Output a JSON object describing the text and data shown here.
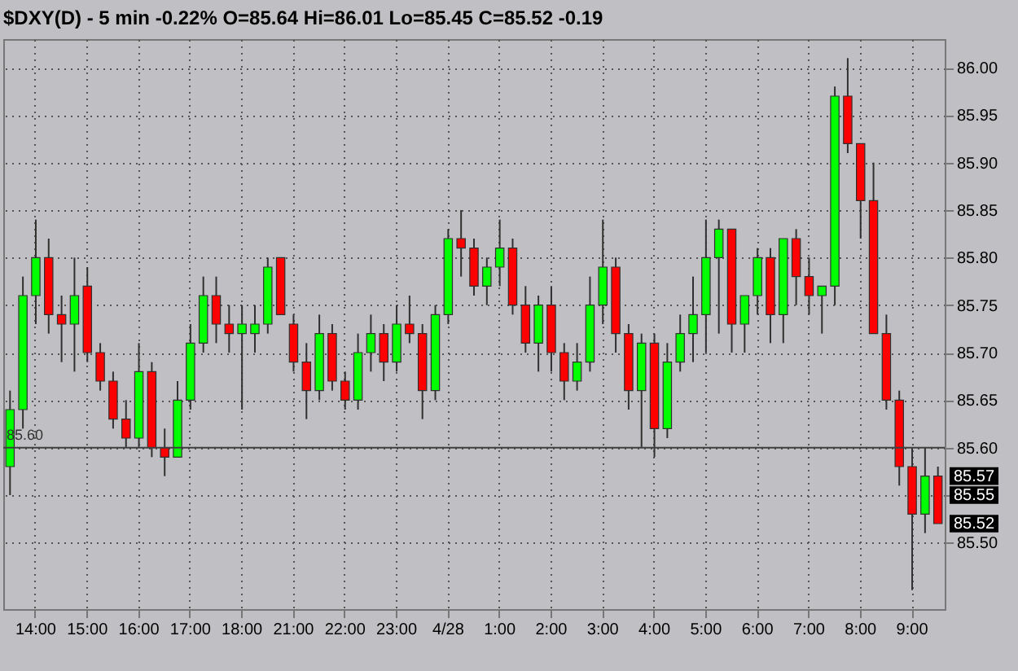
{
  "chart_data": {
    "type": "candlestick",
    "title": "$DXY(D) - 5 min   -0.22%   O=85.64   Hi=86.01   Lo=85.45   C=85.52   -0.19",
    "categories": [
      null,
      null,
      "14:00",
      null,
      null,
      null,
      "15:00",
      null,
      null,
      null,
      "16:00",
      null,
      null,
      null,
      "17:00",
      null,
      null,
      null,
      "18:00",
      null,
      null,
      null,
      "21:00",
      null,
      null,
      null,
      "22:00",
      null,
      null,
      null,
      "23:00",
      null,
      null,
      null,
      "4/28",
      null,
      null,
      null,
      "1:00",
      null,
      null,
      null,
      "2:00",
      null,
      null,
      null,
      "3:00",
      null,
      null,
      null,
      "4:00",
      null,
      null,
      null,
      "5:00",
      null,
      null,
      null,
      "6:00",
      null,
      null,
      null,
      "7:00",
      null,
      null,
      null,
      "8:00",
      null,
      null,
      null,
      "9:00",
      null,
      null
    ],
    "ohlc": [
      [
        85.58,
        85.66,
        85.55,
        85.64
      ],
      [
        85.64,
        85.78,
        85.62,
        85.76
      ],
      [
        85.76,
        85.84,
        85.73,
        85.8
      ],
      [
        85.8,
        85.82,
        85.72,
        85.74
      ],
      [
        85.74,
        85.76,
        85.69,
        85.73
      ],
      [
        85.73,
        85.8,
        85.68,
        85.76
      ],
      [
        85.77,
        85.79,
        85.69,
        85.7
      ],
      [
        85.7,
        85.71,
        85.66,
        85.67
      ],
      [
        85.67,
        85.68,
        85.62,
        85.63
      ],
      [
        85.63,
        85.65,
        85.6,
        85.61
      ],
      [
        85.61,
        85.71,
        85.6,
        85.68
      ],
      [
        85.68,
        85.69,
        85.59,
        85.6
      ],
      [
        85.6,
        85.62,
        85.57,
        85.59
      ],
      [
        85.59,
        85.67,
        85.59,
        85.65
      ],
      [
        85.65,
        85.73,
        85.64,
        85.71
      ],
      [
        85.71,
        85.78,
        85.7,
        85.76
      ],
      [
        85.76,
        85.78,
        85.71,
        85.73
      ],
      [
        85.73,
        85.75,
        85.7,
        85.72
      ],
      [
        85.72,
        85.75,
        85.64,
        85.73
      ],
      [
        85.72,
        85.75,
        85.7,
        85.73
      ],
      [
        85.73,
        85.8,
        85.72,
        85.79
      ],
      [
        85.8,
        85.8,
        85.74,
        85.74
      ],
      [
        85.73,
        85.74,
        85.68,
        85.69
      ],
      [
        85.69,
        85.71,
        85.63,
        85.66
      ],
      [
        85.66,
        85.74,
        85.65,
        85.72
      ],
      [
        85.72,
        85.73,
        85.66,
        85.67
      ],
      [
        85.67,
        85.68,
        85.64,
        85.65
      ],
      [
        85.65,
        85.72,
        85.64,
        85.7
      ],
      [
        85.7,
        85.74,
        85.68,
        85.72
      ],
      [
        85.72,
        85.73,
        85.67,
        85.69
      ],
      [
        85.69,
        85.75,
        85.68,
        85.73
      ],
      [
        85.73,
        85.76,
        85.71,
        85.72
      ],
      [
        85.72,
        85.73,
        85.63,
        85.66
      ],
      [
        85.66,
        85.75,
        85.65,
        85.74
      ],
      [
        85.74,
        85.83,
        85.73,
        85.82
      ],
      [
        85.82,
        85.85,
        85.78,
        85.81
      ],
      [
        85.81,
        85.82,
        85.76,
        85.77
      ],
      [
        85.77,
        85.8,
        85.75,
        85.79
      ],
      [
        85.79,
        85.84,
        85.77,
        85.81
      ],
      [
        85.81,
        85.82,
        85.74,
        85.75
      ],
      [
        85.75,
        85.77,
        85.7,
        85.71
      ],
      [
        85.71,
        85.76,
        85.68,
        85.75
      ],
      [
        85.75,
        85.77,
        85.68,
        85.7
      ],
      [
        85.7,
        85.71,
        85.65,
        85.67
      ],
      [
        85.67,
        85.71,
        85.66,
        85.69
      ],
      [
        85.69,
        85.78,
        85.68,
        85.75
      ],
      [
        85.75,
        85.84,
        85.73,
        85.79
      ],
      [
        85.79,
        85.8,
        85.7,
        85.72
      ],
      [
        85.72,
        85.73,
        85.64,
        85.66
      ],
      [
        85.66,
        85.72,
        85.6,
        85.71
      ],
      [
        85.71,
        85.72,
        85.59,
        85.62
      ],
      [
        85.62,
        85.71,
        85.61,
        85.69
      ],
      [
        85.69,
        85.74,
        85.68,
        85.72
      ],
      [
        85.72,
        85.78,
        85.69,
        85.74
      ],
      [
        85.74,
        85.84,
        85.7,
        85.8
      ],
      [
        85.8,
        85.84,
        85.72,
        85.83
      ],
      [
        85.83,
        85.83,
        85.7,
        85.73
      ],
      [
        85.73,
        85.76,
        85.7,
        85.76
      ],
      [
        85.76,
        85.81,
        85.74,
        85.8
      ],
      [
        85.8,
        85.81,
        85.71,
        85.74
      ],
      [
        85.74,
        85.82,
        85.71,
        85.82
      ],
      [
        85.82,
        85.83,
        85.75,
        85.78
      ],
      [
        85.78,
        85.8,
        85.74,
        85.76
      ],
      [
        85.76,
        85.77,
        85.72,
        85.77
      ],
      [
        85.77,
        85.98,
        85.75,
        85.97
      ],
      [
        85.97,
        86.01,
        85.91,
        85.92
      ],
      [
        85.92,
        85.92,
        85.82,
        85.86
      ],
      [
        85.86,
        85.9,
        85.72,
        85.72
      ],
      [
        85.72,
        85.74,
        85.64,
        85.65
      ],
      [
        85.65,
        85.66,
        85.56,
        85.58
      ],
      [
        85.58,
        85.6,
        85.45,
        85.53
      ],
      [
        85.53,
        85.6,
        85.51,
        85.57
      ],
      [
        85.57,
        85.58,
        85.52,
        85.52
      ]
    ],
    "colors": [
      "#00ff00",
      "#00ff00",
      "#00ff00",
      "#ff0000",
      "#ff0000",
      "#00ff00",
      "#ff0000",
      "#ff0000",
      "#ff0000",
      "#ff0000",
      "#00ff00",
      "#ff0000",
      "#ff0000",
      "#00ff00",
      "#00ff00",
      "#00ff00",
      "#ff0000",
      "#ff0000",
      "#00ff00",
      "#00ff00",
      "#00ff00",
      "#ff0000",
      "#ff0000",
      "#ff0000",
      "#00ff00",
      "#ff0000",
      "#ff0000",
      "#00ff00",
      "#00ff00",
      "#ff0000",
      "#00ff00",
      "#ff0000",
      "#ff0000",
      "#00ff00",
      "#00ff00",
      "#ff0000",
      "#ff0000",
      "#00ff00",
      "#00ff00",
      "#ff0000",
      "#ff0000",
      "#00ff00",
      "#ff0000",
      "#ff0000",
      "#00ff00",
      "#00ff00",
      "#00ff00",
      "#ff0000",
      "#ff0000",
      "#00ff00",
      "#ff0000",
      "#00ff00",
      "#00ff00",
      "#00ff00",
      "#00ff00",
      "#00ff00",
      "#ff0000",
      "#00ff00",
      "#00ff00",
      "#ff0000",
      "#00ff00",
      "#ff0000",
      "#ff0000",
      "#00ff00",
      "#00ff00",
      "#ff0000",
      "#ff0000",
      "#ff0000",
      "#ff0000",
      "#ff0000",
      "#ff0000",
      "#00ff00",
      "#ff0000"
    ],
    "ylim": [
      85.43,
      86.03
    ],
    "yticks": [
      {
        "value": 85.5,
        "label": "85.50"
      },
      {
        "value": 85.55,
        "label": null
      },
      {
        "value": 85.6,
        "label": "85.60"
      },
      {
        "value": 85.65,
        "label": "85.65"
      },
      {
        "value": 85.7,
        "label": "85.70"
      },
      {
        "value": 85.75,
        "label": "85.75"
      },
      {
        "value": 85.8,
        "label": "85.80"
      },
      {
        "value": 85.85,
        "label": "85.85"
      },
      {
        "value": 85.9,
        "label": "85.90"
      },
      {
        "value": 85.95,
        "label": "85.95"
      },
      {
        "value": 86.0,
        "label": "86.00"
      }
    ],
    "grid": true,
    "ref_lines": [
      {
        "axis": "y",
        "value": 85.6,
        "label": "85.60",
        "color": "#404040"
      }
    ],
    "annotations": [
      {
        "text": "85.57",
        "y": 85.57
      },
      {
        "text": "85.55",
        "y": 85.55
      },
      {
        "text": "85.52",
        "y": 85.52
      }
    ]
  }
}
